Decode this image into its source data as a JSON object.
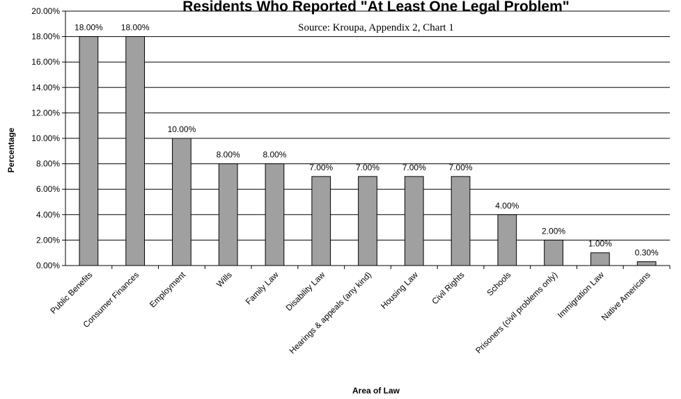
{
  "chart_data": {
    "type": "bar",
    "title": "Residents Who Reported \"At Least One Legal Problem\"",
    "subtitle": "Source: Kroupa, Appendix 2, Chart 1",
    "xlabel": "Area of Law",
    "ylabel": "Percentage",
    "ylim": [
      0,
      20
    ],
    "ytick_step": 2,
    "yticks": [
      "0.00%",
      "2.00%",
      "4.00%",
      "6.00%",
      "8.00%",
      "10.00%",
      "12.00%",
      "14.00%",
      "16.00%",
      "18.00%",
      "20.00%"
    ],
    "grid": true,
    "legend": "none",
    "bar_color": "#a0a0a0",
    "categories": [
      "Public Benefits",
      "Consumer Finances",
      "Employment",
      "Wills",
      "Family Law",
      "Disability Law",
      "Hearings & appeals (any kind)",
      "Housing Law",
      "Civil Rights",
      "Schools",
      "Prisoners (civil problems only)",
      "Immigration Law",
      "Native Americans"
    ],
    "values": [
      18,
      18,
      10,
      8,
      8,
      7,
      7,
      7,
      7,
      4,
      2,
      1,
      0.3
    ],
    "data_labels": [
      "18.00%",
      "18.00%",
      "10.00%",
      "8.00%",
      "8.00%",
      "7.00%",
      "7.00%",
      "7.00%",
      "7.00%",
      "4.00%",
      "2.00%",
      "1.00%",
      "0.30%"
    ]
  }
}
